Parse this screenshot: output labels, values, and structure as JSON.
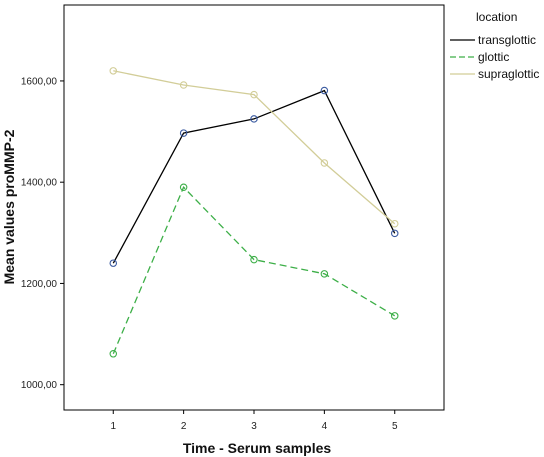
{
  "chart_data": {
    "type": "line",
    "title": "",
    "xlabel": "Time - Serum samples",
    "ylabel": "Mean values proMMP-2",
    "x": [
      1,
      2,
      3,
      4,
      5
    ],
    "x_tick_labels": [
      "1",
      "2",
      "3",
      "4",
      "5"
    ],
    "xlim": [
      0.3,
      5.7
    ],
    "ylim": [
      950,
      1750
    ],
    "y_ticks": [
      1000,
      1200,
      1400,
      1600
    ],
    "y_tick_labels": [
      "1000,00",
      "1200,00",
      "1400,00",
      "1600,00"
    ],
    "grid": false,
    "legend_title": "location",
    "legend_position": "right",
    "series": [
      {
        "name": "transglottic",
        "values": [
          1240,
          1497,
          1525,
          1581,
          1299
        ],
        "color": "#000000",
        "marker_color": "#3a5aa0",
        "dash": "solid"
      },
      {
        "name": "glottic",
        "values": [
          1061,
          1390,
          1247,
          1219,
          1136
        ],
        "color": "#3daf48",
        "marker_color": "#3daf48",
        "dash": "dashed"
      },
      {
        "name": "supraglottic",
        "values": [
          1620,
          1592,
          1573,
          1438,
          1318
        ],
        "color": "#d2cd98",
        "marker_color": "#d2cd98",
        "dash": "solid"
      }
    ]
  }
}
